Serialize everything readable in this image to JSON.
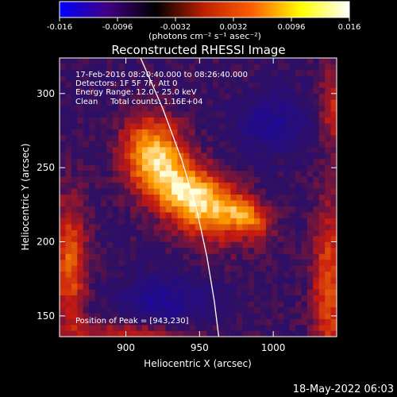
{
  "chart_data": {
    "type": "heatmap",
    "title": "Reconstructed RHESSI Image",
    "xlabel": "Heliocentric X (arcsec)",
    "ylabel": "Heliocentric Y (arcsec)",
    "xlim": [
      855,
      1043
    ],
    "ylim": [
      136,
      324
    ],
    "x_ticks": [
      900,
      950,
      1000
    ],
    "y_ticks": [
      150,
      200,
      250,
      300
    ],
    "colorbar": {
      "range": [
        -0.016,
        0.016
      ],
      "ticks": [
        "-0.016",
        "-0.0096",
        "-0.0032",
        "0.0032",
        "0.0096",
        "0.016"
      ],
      "label": "(photons cm⁻² s⁻¹ asec⁻²)",
      "colors": [
        "#0000ff",
        "#400080",
        "#000000",
        "#c02000",
        "#ff6000",
        "#ffff00",
        "#ffffff"
      ]
    },
    "annotations": [
      "17-Feb-2016 08:20:40.000 to 08:26:40.000",
      "Detectors: 1F 5F 7F, Att 0",
      "Energy Range: 12.0 - 25.0 keV",
      "Clean     Total counts: 1.16E+04",
      "Position of Peak = [943,230]"
    ],
    "peak": {
      "x": 943,
      "y": 230
    },
    "limb_curve": [
      [
        910,
        324
      ],
      [
        925,
        290
      ],
      [
        938,
        255
      ],
      [
        948,
        222
      ],
      [
        955,
        190
      ],
      [
        960,
        160
      ],
      [
        963,
        136
      ]
    ],
    "features": [
      {
        "x": 945,
        "y": 230,
        "sx": 24,
        "sy": 14,
        "rot": -35,
        "amp": 1.0
      },
      {
        "x": 918,
        "y": 262,
        "sx": 14,
        "sy": 16,
        "rot": 0,
        "amp": 0.7
      },
      {
        "x": 982,
        "y": 218,
        "sx": 12,
        "sy": 8,
        "rot": -30,
        "amp": 0.55
      },
      {
        "x": 925,
        "y": 160,
        "sx": 20,
        "sy": 12,
        "rot": 0,
        "amp": -0.35
      },
      {
        "x": 1000,
        "y": 280,
        "sx": 18,
        "sy": 14,
        "rot": 0,
        "amp": -0.3
      },
      {
        "x": 862,
        "y": 185,
        "sx": 8,
        "sy": 30,
        "rot": 0,
        "amp": 0.55
      },
      {
        "x": 1038,
        "y": 170,
        "sx": 8,
        "sy": 40,
        "rot": 0,
        "amp": 0.5
      },
      {
        "x": 1040,
        "y": 290,
        "sx": 6,
        "sy": 20,
        "rot": 0,
        "amp": 0.35
      },
      {
        "x": 900,
        "y": 138,
        "sx": 30,
        "sy": 6,
        "rot": 0,
        "amp": 0.35
      }
    ]
  },
  "footer": {
    "date": "18-May-2022 06:03"
  }
}
